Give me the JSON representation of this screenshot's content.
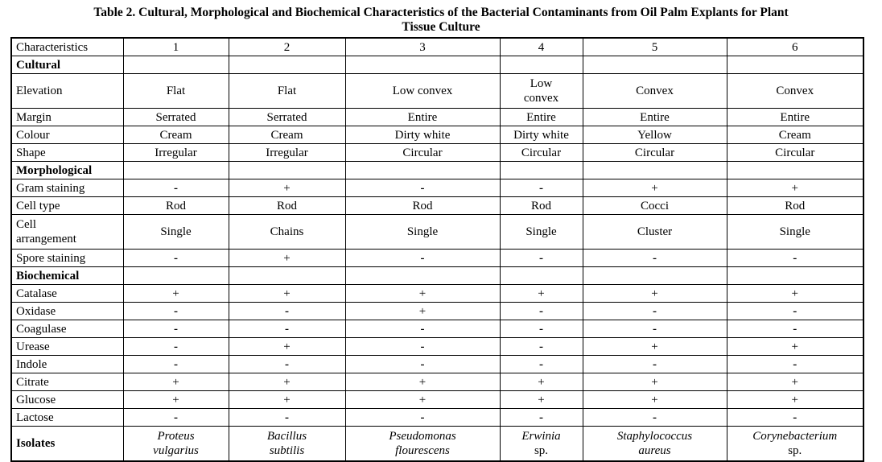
{
  "title": {
    "line1": "Table 2. Cultural, Morphological and Biochemical Characteristics of the Bacterial Contaminants from Oil Palm Explants for Plant",
    "line2": "Tissue Culture"
  },
  "colors": {
    "text": "#000000",
    "background": "#ffffff",
    "border": "#000000"
  },
  "table": {
    "columns": [
      "Characteristics",
      "1",
      "2",
      "3",
      "4",
      "5",
      "6"
    ],
    "rows": [
      {
        "type": "section",
        "label": "Cultural"
      },
      {
        "type": "data",
        "label": "Elevation",
        "tall": true,
        "values": [
          "Flat",
          "Flat",
          "Low convex",
          "Low\nconvex",
          "Convex",
          "Convex"
        ]
      },
      {
        "type": "data",
        "label": "Margin",
        "values": [
          "Serrated",
          "Serrated",
          "Entire",
          "Entire",
          "Entire",
          "Entire"
        ]
      },
      {
        "type": "data",
        "label": "Colour",
        "values": [
          "Cream",
          "Cream",
          "Dirty white",
          "Dirty white",
          "Yellow",
          "Cream"
        ]
      },
      {
        "type": "data",
        "label": "Shape",
        "values": [
          "Irregular",
          "Irregular",
          "Circular",
          "Circular",
          "Circular",
          "Circular"
        ]
      },
      {
        "type": "section",
        "label": "Morphological"
      },
      {
        "type": "data",
        "label": "Gram staining",
        "values": [
          "-",
          "+",
          "-",
          "-",
          "+",
          "+"
        ]
      },
      {
        "type": "data",
        "label": "Cell type",
        "values": [
          "Rod",
          "Rod",
          "Rod",
          "Rod",
          "Cocci",
          "Rod"
        ]
      },
      {
        "type": "data",
        "label": "Cell\narrangement",
        "tall": true,
        "values": [
          "Single",
          "Chains",
          "Single",
          "Single",
          "Cluster",
          "Single"
        ]
      },
      {
        "type": "data",
        "label": "Spore staining",
        "values": [
          "-",
          "+",
          "-",
          "-",
          "-",
          "-"
        ]
      },
      {
        "type": "section",
        "label": "Biochemical"
      },
      {
        "type": "data",
        "label": "Catalase",
        "values": [
          "+",
          "+",
          "+",
          "+",
          "+",
          "+"
        ]
      },
      {
        "type": "data",
        "label": "Oxidase",
        "values": [
          "-",
          "-",
          "+",
          "-",
          "-",
          "-"
        ]
      },
      {
        "type": "data",
        "label": "Coagulase",
        "values": [
          "-",
          "-",
          "-",
          "-",
          "-",
          "-"
        ]
      },
      {
        "type": "data",
        "label": "Urease",
        "values": [
          "-",
          "+",
          "-",
          "-",
          "+",
          "+"
        ]
      },
      {
        "type": "data",
        "label": "Indole",
        "values": [
          "-",
          "-",
          "-",
          "-",
          "-",
          "-"
        ]
      },
      {
        "type": "data",
        "label": "Citrate",
        "values": [
          "+",
          "+",
          "+",
          "+",
          "+",
          "+"
        ]
      },
      {
        "type": "data",
        "label": "Glucose",
        "values": [
          "+",
          "+",
          "+",
          "+",
          "+",
          "+"
        ]
      },
      {
        "type": "data",
        "label": "Lactose",
        "values": [
          "-",
          "-",
          "-",
          "-",
          "-",
          "-"
        ]
      },
      {
        "type": "isolates",
        "label": "Isolates",
        "values": [
          {
            "line1": "Proteus",
            "line2": "vulgarius",
            "line2_italic": true
          },
          {
            "line1": "Bacillus",
            "line2": "subtilis",
            "line2_italic": true
          },
          {
            "line1": "Pseudomonas",
            "line2": "flourescens",
            "line2_italic": true
          },
          {
            "line1": "Erwinia",
            "line2": "sp.",
            "line2_italic": false
          },
          {
            "line1": "Staphylococcus",
            "line2": "aureus",
            "line2_italic": true
          },
          {
            "line1": "Corynebacterium",
            "line2": "sp.",
            "line2_italic": false
          }
        ]
      }
    ]
  }
}
